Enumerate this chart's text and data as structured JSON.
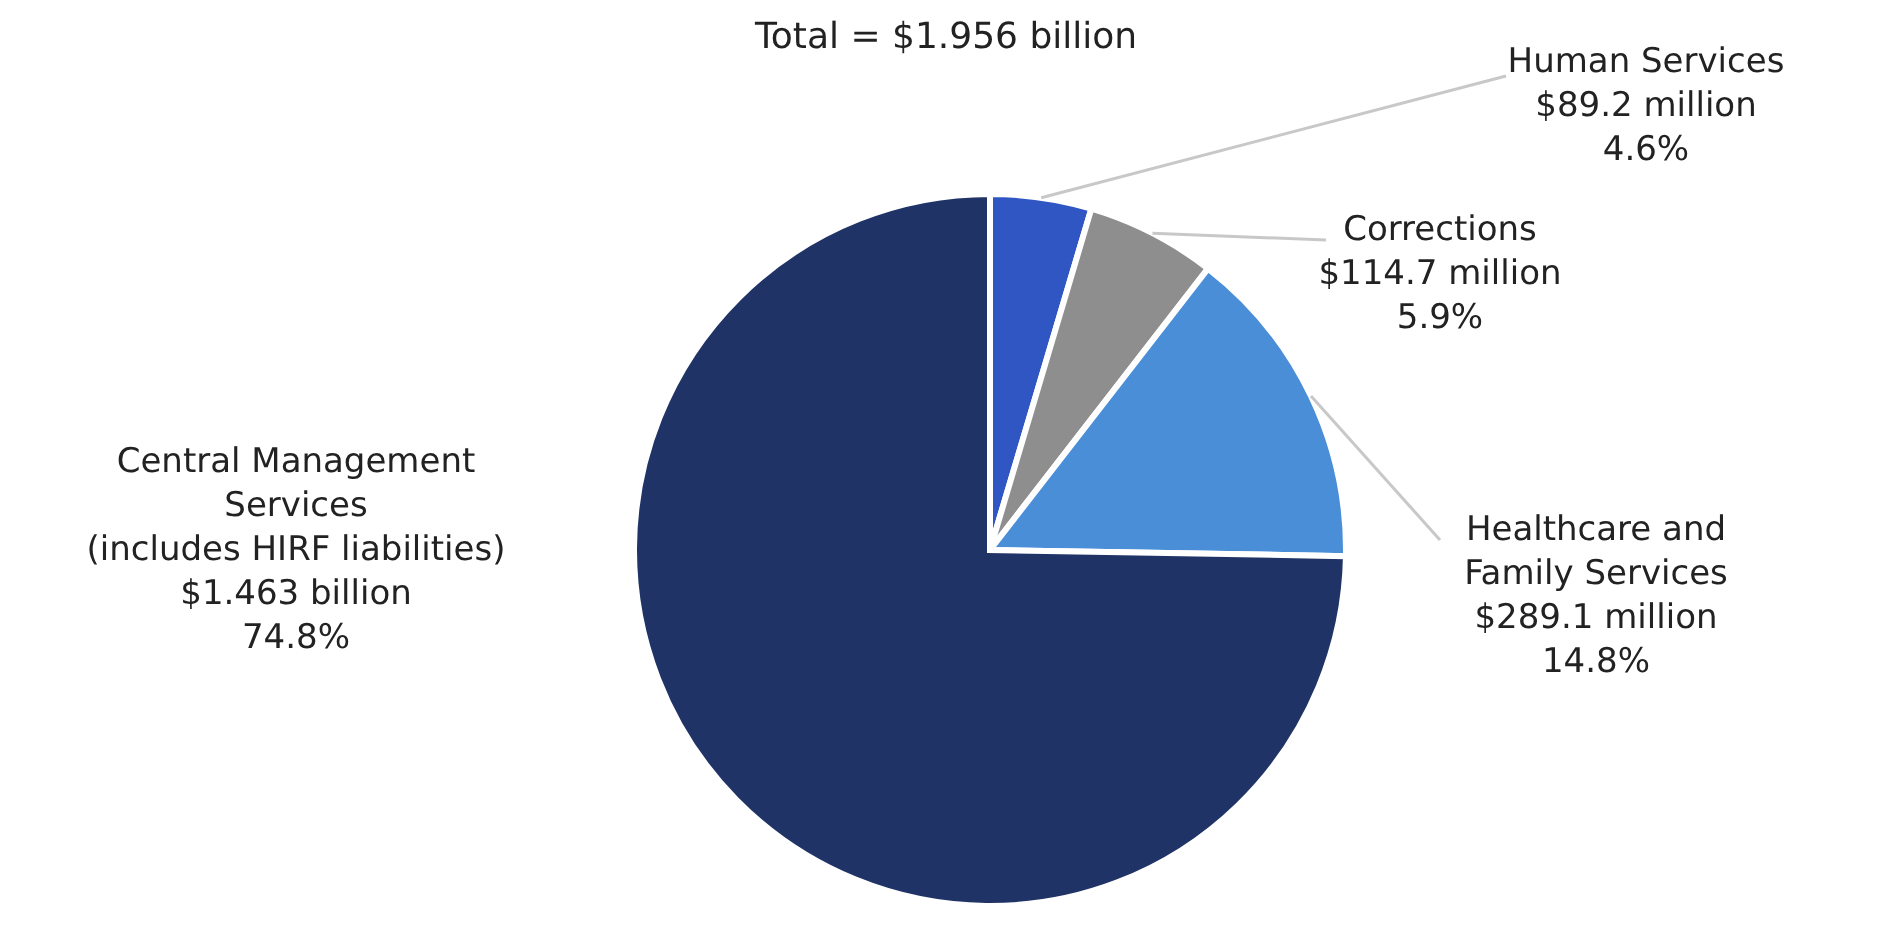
{
  "chart_data": {
    "type": "pie",
    "title": "Total = $1.956 billion",
    "categories": [
      "Human Services",
      "Corrections",
      "Healthcare and Family Services",
      "Central Management Services (includes HIRF liabilities)"
    ],
    "values": [
      4.6,
      5.9,
      14.8,
      74.8
    ],
    "colors": [
      "#2f56c2",
      "#8e8e8e",
      "#4a8ed8",
      "#1f3366"
    ],
    "value_labels": [
      "$89.2 million\n4.6%",
      "$114.7 million\n5.9%",
      "$289.1 million\n14.8%",
      "$1.463 billion\n74.8%"
    ]
  }
}
